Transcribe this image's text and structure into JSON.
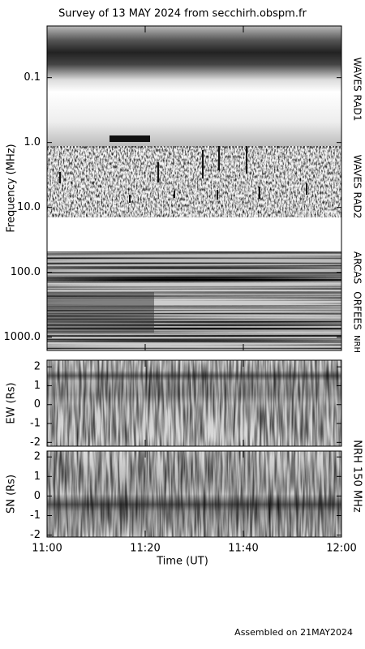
{
  "title": "Survey of 13 MAY 2024 from secchirh.obspm.fr",
  "footer": "Assembled on 21MAY2024",
  "instrument_label": "NRH 150 MHz",
  "chart_data": [
    {
      "type": "spectrogram",
      "ylabel": "Frequency (MHz)",
      "log_y": true,
      "ylim": [
        0.016,
        1600
      ],
      "yticks": [
        0.1,
        {
          "value": 1,
          "label": "1.0"
        },
        {
          "value": 10,
          "label": "10.0"
        },
        {
          "value": 100,
          "label": "100.0"
        },
        {
          "value": 1000,
          "label": "1000.0"
        }
      ],
      "instruments": [
        "WAVES RAD1",
        "WAVES RAD2",
        "ARCAS",
        "ORFEES",
        "NRH"
      ]
    },
    {
      "type": "heatmap",
      "ylabel": "EW (Rs)",
      "ylim": [
        -2.2,
        2.35
      ],
      "yticks": [
        -2,
        -1,
        0,
        1,
        2
      ]
    },
    {
      "type": "heatmap",
      "ylabel": "SN (Rs)",
      "ylim": [
        -2.1,
        2.3
      ],
      "yticks": [
        -2,
        -1,
        0,
        1,
        2
      ],
      "xlabel": "Time (UT)",
      "xlim": [
        "11:00",
        "12:00"
      ],
      "xticks": [
        "11:00",
        "11:20",
        "11:40",
        "12:00"
      ]
    }
  ]
}
